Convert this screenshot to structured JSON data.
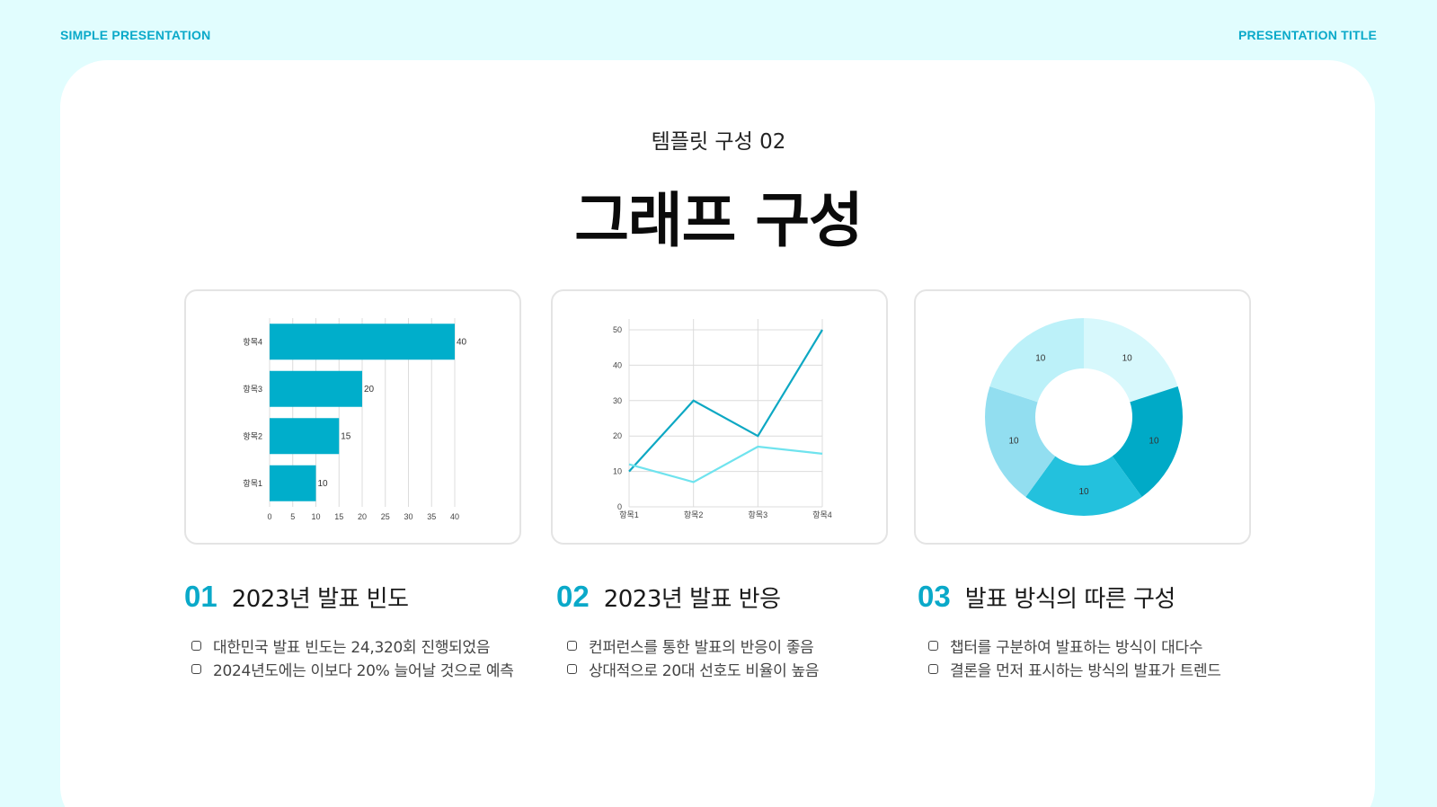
{
  "header": {
    "left": "SIMPLE PRESENTATION",
    "right": "PRESENTATION TITLE"
  },
  "subtitle": "템플릿 구성 02",
  "title": "그래프 구성",
  "sections": [
    {
      "num": "01",
      "title": "2023년 발표 빈도",
      "bullets": [
        "대한민국 발표 빈도는 24,320회 진행되었음",
        "2024년도에는 이보다 20% 늘어날 것으로 예측"
      ]
    },
    {
      "num": "02",
      "title": "2023년 발표 반응",
      "bullets": [
        "컨퍼런스를 통한 발표의 반응이 좋음",
        "상대적으로 20대 선호도 비율이 높음"
      ]
    },
    {
      "num": "03",
      "title": "발표 방식의 따른 구성",
      "bullets": [
        "챕터를 구분하여 발표하는 방식이 대다수",
        "결론을 먼저 표시하는 방식의 발표가 트렌드"
      ]
    }
  ],
  "colors": {
    "accent": "#0aa9c9",
    "bar": "#00aecb",
    "line_dark": "#0da8c3",
    "line_light": "#6fe3ee",
    "donut": [
      "#d7f8fc",
      "#00aac7",
      "#23c1dd",
      "#92def0",
      "#bcf1f9"
    ]
  },
  "chart_data": [
    {
      "type": "bar",
      "orientation": "horizontal",
      "categories": [
        "항목1",
        "항목2",
        "항목3",
        "항목4"
      ],
      "values": [
        10,
        15,
        20,
        40
      ],
      "xticks": [
        0,
        5,
        10,
        15,
        20,
        25,
        30,
        35,
        40
      ],
      "xlim": [
        0,
        40
      ],
      "grid": true
    },
    {
      "type": "line",
      "categories": [
        "항목1",
        "항목2",
        "항목3",
        "항목4"
      ],
      "series": [
        {
          "values": [
            10,
            30,
            20,
            50
          ]
        },
        {
          "values": [
            12,
            7,
            17,
            15
          ]
        }
      ],
      "yticks": [
        0,
        10,
        20,
        30,
        40,
        50
      ],
      "ylim": [
        0,
        50
      ],
      "grid": true
    },
    {
      "type": "pie",
      "donut": true,
      "values": [
        10,
        10,
        10,
        10,
        10
      ],
      "labels": [
        "10",
        "10",
        "10",
        "10",
        "10"
      ]
    }
  ]
}
